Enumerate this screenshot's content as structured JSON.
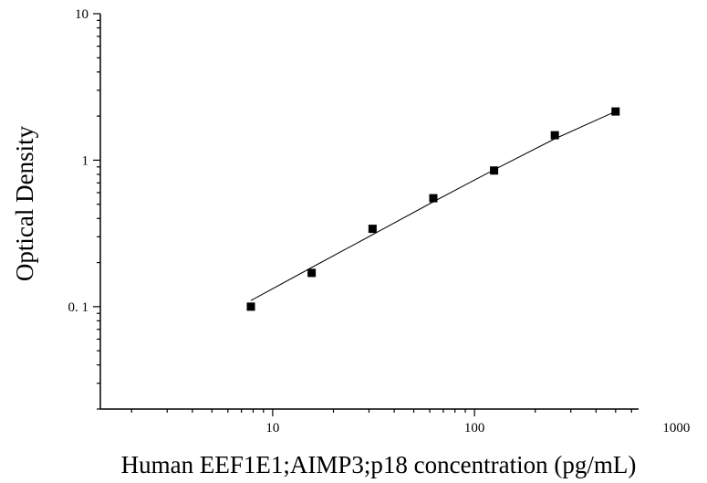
{
  "chart_data": {
    "type": "scatter",
    "xlabel": "Human EEF1E1;AIMP3;p18 concentration (pg/mL)",
    "ylabel": "Optical Density",
    "x_scale": "log",
    "y_scale": "log",
    "xlim": [
      1.4,
      650
    ],
    "ylim": [
      0.02,
      10
    ],
    "x_ticks": [
      10,
      100,
      1000
    ],
    "x_tick_labels": [
      "10",
      "100",
      "1000"
    ],
    "y_ticks": [
      0.1,
      1,
      10
    ],
    "y_tick_labels": [
      "0. 1",
      "1",
      "10"
    ],
    "grid": false,
    "series": [
      {
        "marker": "square",
        "color": "#000000",
        "x": [
          7.8,
          15.6,
          31.25,
          62.5,
          125,
          250,
          500
        ],
        "y": [
          0.1,
          0.17,
          0.34,
          0.55,
          0.85,
          1.48,
          2.15
        ]
      }
    ],
    "fit_curve": {
      "color": "#000000",
      "x": [
        7.8,
        15.6,
        31.25,
        62.5,
        125,
        250,
        500
      ],
      "y": [
        0.11,
        0.185,
        0.31,
        0.52,
        0.86,
        1.4,
        2.15
      ]
    }
  }
}
